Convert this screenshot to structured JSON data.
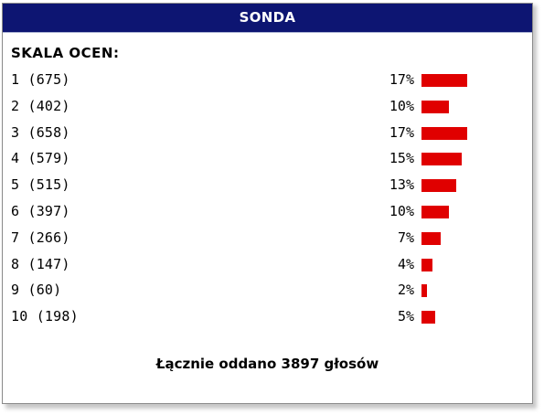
{
  "header": {
    "title": "SONDA"
  },
  "poll": {
    "scale_title": "SKALA OCEN:",
    "rows": [
      {
        "label": "1 (675)",
        "percent": "17%",
        "value": 17
      },
      {
        "label": "2 (402)",
        "percent": "10%",
        "value": 10
      },
      {
        "label": "3 (658)",
        "percent": "17%",
        "value": 17
      },
      {
        "label": "4 (579)",
        "percent": "15%",
        "value": 15
      },
      {
        "label": "5 (515)",
        "percent": "13%",
        "value": 13
      },
      {
        "label": "6 (397)",
        "percent": "10%",
        "value": 10
      },
      {
        "label": "7 (266)",
        "percent": "7%",
        "value": 7
      },
      {
        "label": "8 (147)",
        "percent": "4%",
        "value": 4
      },
      {
        "label": "9 (60)",
        "percent": "2%",
        "value": 2
      },
      {
        "label": "10 (198)",
        "percent": "5%",
        "value": 5
      }
    ],
    "total": "Łącznie oddano 3897 głosów"
  },
  "colors": {
    "header_bg": "#0d1572",
    "bar": "#e00000"
  }
}
